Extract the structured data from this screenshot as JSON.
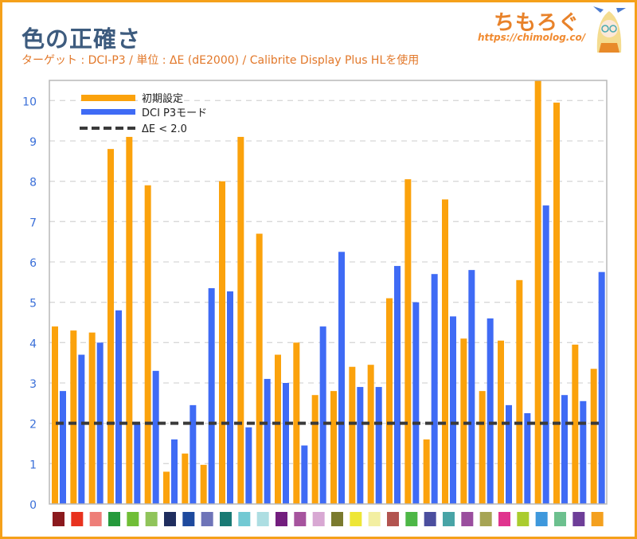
{
  "header": {
    "title": "色の正確さ",
    "subtitle": "ターゲット : DCI-P3 / 単位 : ΔE (dE2000) / Calibrite Display Plus HLを使用",
    "logo_text": "ちもろぐ",
    "logo_url": "https://chimolog.co/"
  },
  "colors": {
    "border": "#F5A01A",
    "orange": "#FBA20C",
    "blue": "#3F6BF5",
    "threshold": "#3A3A3A",
    "axis_label": "#3A6FD8"
  },
  "chart_data": {
    "type": "bar",
    "title": "色の正確さ",
    "xlabel": "",
    "ylabel": "ΔE",
    "ylim": [
      0,
      10.5
    ],
    "yticks": [
      "0",
      "1",
      "2",
      "3",
      "4",
      "5",
      "6",
      "7",
      "8",
      "9",
      "10"
    ],
    "grid": true,
    "legend_position": "top-left",
    "categories": [
      "#8B1A1E",
      "#E8321E",
      "#EE7E78",
      "#259A3C",
      "#70BE36",
      "#90C45A",
      "#1F2D5E",
      "#1E4A9E",
      "#6E74B8",
      "#197A74",
      "#72C9D3",
      "#ADDEE2",
      "#731E7E",
      "#A6549E",
      "#D8A8D3",
      "#7A7A2E",
      "#EEE636",
      "#F3EFA2",
      "#B25450",
      "#4DB746",
      "#4B4E9E",
      "#48A4A6",
      "#9A4E9E",
      "#A6A454",
      "#E0348E",
      "#AACC2E",
      "#3E98DC",
      "#6CC08E",
      "#6E3E98",
      "#F4A01E"
    ],
    "series": [
      {
        "name": "初期設定",
        "values": [
          4.4,
          4.3,
          4.25,
          8.8,
          9.1,
          7.9,
          0.8,
          1.25,
          0.97,
          8.0,
          9.1,
          6.7,
          3.7,
          4.0,
          2.7,
          2.8,
          3.4,
          3.45,
          5.1,
          8.05,
          1.6,
          7.55,
          4.1,
          2.8,
          4.05,
          5.55,
          10.5,
          9.95,
          3.95,
          3.35
        ]
      },
      {
        "name": "DCI P3モード",
        "values": [
          2.8,
          3.7,
          4.0,
          4.8,
          2.0,
          3.3,
          1.6,
          2.45,
          5.35,
          5.27,
          1.9,
          3.1,
          3.0,
          1.45,
          4.4,
          6.25,
          2.9,
          2.9,
          5.9,
          5.0,
          5.7,
          4.65,
          5.8,
          4.6,
          2.45,
          2.25,
          7.4,
          2.7,
          2.55,
          5.75
        ]
      }
    ],
    "threshold": {
      "name": "ΔE < 2.0",
      "value": 2.0
    }
  }
}
